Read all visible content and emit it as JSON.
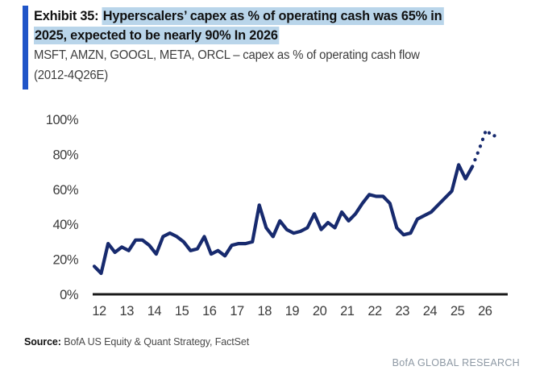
{
  "exhibit": {
    "label_prefix": "Exhibit 35: ",
    "title_line1": "Hyperscalers’ capex as % of operating cash was 65% in",
    "title_line2": "2025, expected to be nearly 90% In 2026",
    "subtitle_line1": "MSFT, AMZN, GOOGL, META, ORCL – capex as % of operating cash flow",
    "subtitle_line2": "(2012-4Q26E)"
  },
  "source": {
    "label": "Source:",
    "text": " BofA US Equity & Quant Strategy, FactSet"
  },
  "branding": "BofA GLOBAL RESEARCH",
  "colors": {
    "line": "#172a6e",
    "highlight": "#b9d5ea",
    "accent_bar": "#2055c8",
    "axis": "#1a1a1a",
    "tick_text": "#3b3b3b",
    "branding_text": "#8e99a4"
  },
  "chart_data": {
    "type": "line",
    "title": "Hyperscalers' capex as % of operating cash flow, quarterly, 2012-4Q26E",
    "xlabel": "",
    "ylabel": "capex as % of operating cash flow",
    "ylim": [
      0,
      100
    ],
    "y_tick_step": 20,
    "y_tick_labels": [
      "0%",
      "20%",
      "40%",
      "60%",
      "80%",
      "100%"
    ],
    "x_tick_labels": [
      "12",
      "13",
      "14",
      "15",
      "16",
      "17",
      "18",
      "19",
      "20",
      "21",
      "22",
      "23",
      "24",
      "25",
      "26"
    ],
    "grid": false,
    "legend": false,
    "series": [
      {
        "name": "capex-pct-of-operating-cash-actual",
        "style": "solid",
        "start_quarter": "2012Q1",
        "values": [
          16,
          12,
          29,
          24,
          27,
          25,
          31,
          31,
          28,
          23,
          33,
          35,
          33,
          30,
          25,
          26,
          33,
          23,
          25,
          22,
          28,
          29,
          29,
          30,
          51,
          38,
          33,
          42,
          37,
          35,
          36,
          38,
          46,
          37,
          41,
          38,
          47,
          42,
          46,
          52,
          57,
          56,
          56,
          52,
          38,
          34,
          35,
          43,
          45,
          47,
          51,
          55,
          59,
          74,
          66,
          73
        ]
      },
      {
        "name": "capex-pct-of-operating-cash-estimate",
        "style": "dotted",
        "start_quarter": "2026Q1",
        "values": [
          83,
          94,
          90,
          93
        ]
      }
    ]
  }
}
